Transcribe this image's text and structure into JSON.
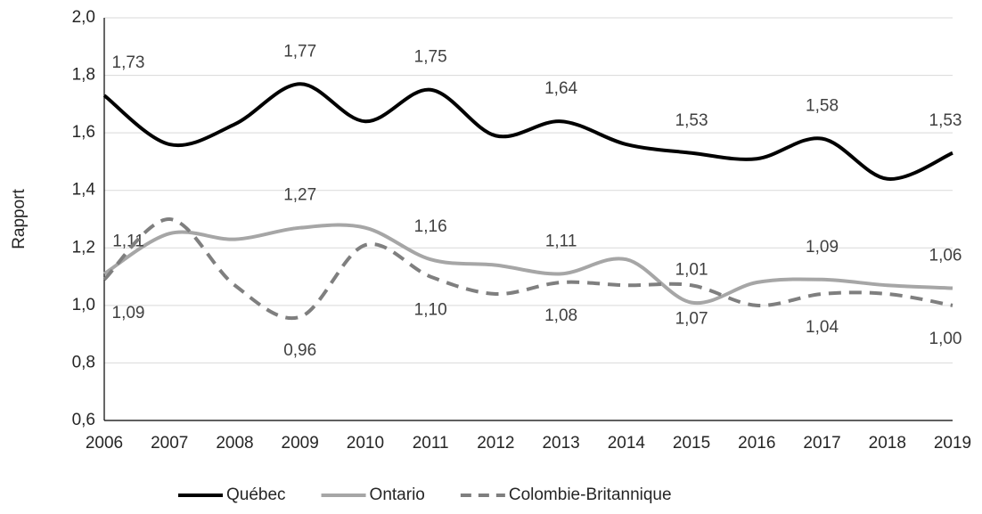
{
  "chart_data": {
    "type": "line",
    "y_label": "Rapport",
    "categories": [
      "2006",
      "2007",
      "2008",
      "2009",
      "2010",
      "2011",
      "2012",
      "2013",
      "2014",
      "2015",
      "2016",
      "2017",
      "2018",
      "2019"
    ],
    "ylim": [
      0.6,
      2.0
    ],
    "yticks": [
      {
        "value": 0.6,
        "label": "0,6"
      },
      {
        "value": 0.8,
        "label": "0,8"
      },
      {
        "value": 1.0,
        "label": "1,0"
      },
      {
        "value": 1.2,
        "label": "1,2"
      },
      {
        "value": 1.4,
        "label": "1,4"
      },
      {
        "value": 1.6,
        "label": "1,6"
      },
      {
        "value": 1.8,
        "label": "1,8"
      },
      {
        "value": 2.0,
        "label": "2,0"
      }
    ],
    "grid": true,
    "legend": "bottom",
    "series": [
      {
        "name": "Québec",
        "color": "#000000",
        "dash": false,
        "label_side": "above",
        "values": [
          1.73,
          1.56,
          1.63,
          1.77,
          1.64,
          1.75,
          1.59,
          1.64,
          1.56,
          1.53,
          1.51,
          1.58,
          1.44,
          1.53
        ],
        "value_labels": [
          "1,73",
          null,
          null,
          "1,77",
          null,
          "1,75",
          null,
          "1,64",
          null,
          "1,53",
          null,
          "1,58",
          null,
          "1,53"
        ]
      },
      {
        "name": "Ontario",
        "color": "#a6a6a6",
        "dash": false,
        "label_side": "above",
        "values": [
          1.11,
          1.25,
          1.23,
          1.27,
          1.27,
          1.16,
          1.14,
          1.11,
          1.16,
          1.01,
          1.08,
          1.09,
          1.07,
          1.06
        ],
        "value_labels": [
          "1,11",
          null,
          null,
          "1,27",
          null,
          "1,16",
          null,
          "1,11",
          null,
          "1,01",
          null,
          "1,09",
          null,
          "1,06"
        ]
      },
      {
        "name": "Colombie-Britannique",
        "color": "#7f7f7f",
        "dash": true,
        "label_side": "below",
        "values": [
          1.09,
          1.3,
          1.07,
          0.96,
          1.21,
          1.1,
          1.04,
          1.08,
          1.07,
          1.07,
          1.0,
          1.04,
          1.04,
          1.0
        ],
        "value_labels": [
          "1,09",
          null,
          null,
          "0,96",
          null,
          "1,10",
          null,
          "1,08",
          null,
          "1,07",
          null,
          "1,04",
          null,
          "1,00"
        ]
      }
    ]
  }
}
